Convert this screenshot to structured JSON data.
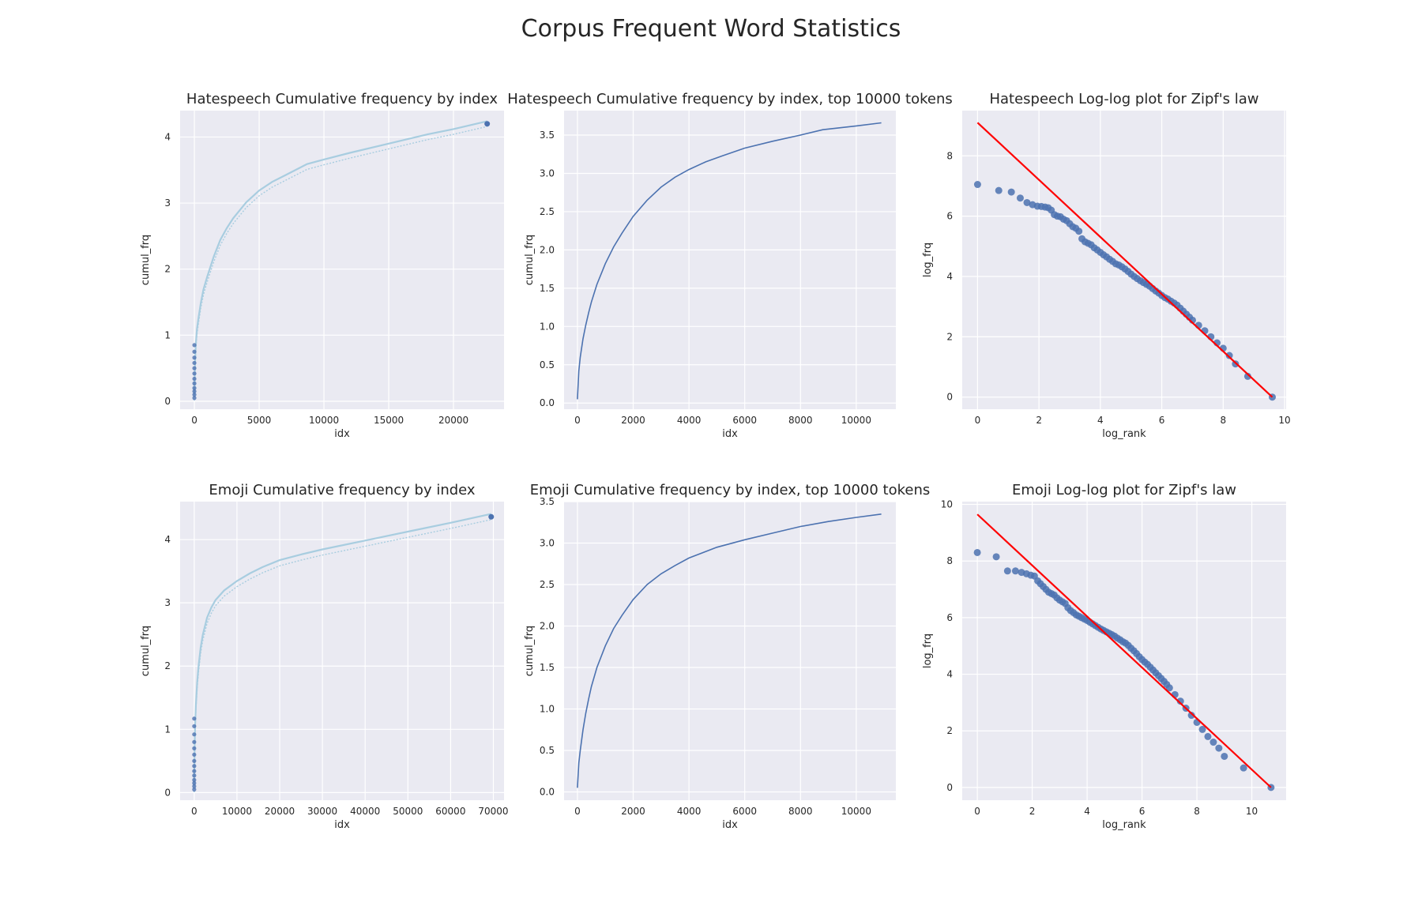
{
  "figure": {
    "title": "Corpus Frequent Word Statistics",
    "colors": {
      "background": "#ffffff",
      "panel": "#eaeaf2",
      "grid": "#ffffff",
      "series_line": "#4c72b0",
      "cumul_band": "#a8cde0",
      "cumul_point": "#4c72b0",
      "scatter_point": "#4c72b0",
      "fit_line": "#ff0000",
      "text": "#262626"
    }
  },
  "chart_data": [
    {
      "id": "hate-cumul-full",
      "type": "scatter",
      "title": "Hatespeech Cumulative frequency by index",
      "xlabel": "idx",
      "ylabel": "cumul_frq",
      "xlim": [
        -1100,
        23900
      ],
      "ylim": [
        -0.12,
        4.4
      ],
      "xticks": [
        0,
        5000,
        10000,
        15000,
        20000
      ],
      "xtick_labels": [
        "0",
        "5000",
        "10000",
        "15000",
        "20000"
      ],
      "yticks": [
        0,
        1,
        2,
        3,
        4
      ],
      "ytick_labels": [
        "0",
        "1",
        "2",
        "3",
        "4"
      ],
      "grid": true,
      "x": [
        0,
        50,
        100,
        200,
        300,
        500,
        700,
        1000,
        1500,
        2000,
        2500,
        3000,
        4000,
        5000,
        6000,
        7000,
        8700,
        10000,
        12000,
        15000,
        18000,
        20000,
        22600
      ],
      "y": [
        0.05,
        0.55,
        0.8,
        1.05,
        1.2,
        1.45,
        1.65,
        1.85,
        2.15,
        2.4,
        2.58,
        2.73,
        2.97,
        3.15,
        3.28,
        3.38,
        3.55,
        3.62,
        3.72,
        3.86,
        4.0,
        4.08,
        4.2
      ],
      "band_offset": 0.08,
      "start_points": [
        0.05,
        0.1,
        0.15,
        0.2,
        0.27,
        0.34,
        0.42,
        0.5,
        0.58,
        0.66,
        0.75,
        0.85
      ],
      "end_point": [
        22600,
        4.2
      ]
    },
    {
      "id": "hate-cumul-top",
      "type": "line",
      "title": "Hatespeech Cumulative frequency by index, top 10000 tokens",
      "xlabel": "idx",
      "ylabel": "cumul_frq",
      "xlim": [
        -480,
        11420
      ],
      "ylim": [
        -0.08,
        3.82
      ],
      "xticks": [
        0,
        2000,
        4000,
        6000,
        8000,
        10000
      ],
      "xtick_labels": [
        "0",
        "2000",
        "4000",
        "6000",
        "8000",
        "10000"
      ],
      "yticks": [
        0,
        0.5,
        1,
        1.5,
        2,
        2.5,
        3,
        3.5
      ],
      "ytick_labels": [
        "0.0",
        "0.5",
        "1.0",
        "1.5",
        "2.0",
        "2.5",
        "3.0",
        "3.5"
      ],
      "grid": true,
      "x": [
        0,
        50,
        100,
        200,
        300,
        400,
        500,
        700,
        1000,
        1300,
        1600,
        2000,
        2500,
        3000,
        3500,
        4000,
        4600,
        5200,
        6000,
        7000,
        8000,
        8800,
        10000,
        10900
      ],
      "y": [
        0.05,
        0.42,
        0.6,
        0.84,
        1.02,
        1.18,
        1.32,
        1.55,
        1.82,
        2.04,
        2.22,
        2.44,
        2.65,
        2.82,
        2.95,
        3.05,
        3.15,
        3.23,
        3.33,
        3.42,
        3.5,
        3.57,
        3.62,
        3.66
      ]
    },
    {
      "id": "hate-zipf",
      "type": "scatter",
      "title": "Hatespeech Log-log plot for Zipf's law",
      "xlabel": "log_rank",
      "ylabel": "log_frq",
      "xlim": [
        -0.5,
        10.05
      ],
      "ylim": [
        -0.4,
        9.5
      ],
      "xticks": [
        0,
        2,
        4,
        6,
        8,
        10
      ],
      "xtick_labels": [
        "0",
        "2",
        "4",
        "6",
        "8",
        "10"
      ],
      "yticks": [
        0,
        2,
        4,
        6,
        8
      ],
      "ytick_labels": [
        "0",
        "2",
        "4",
        "6",
        "8"
      ],
      "grid": true,
      "points": [
        [
          0,
          7.05
        ],
        [
          0.69,
          6.85
        ],
        [
          1.1,
          6.8
        ],
        [
          1.39,
          6.6
        ],
        [
          1.61,
          6.45
        ],
        [
          1.79,
          6.38
        ],
        [
          1.95,
          6.33
        ],
        [
          2.08,
          6.32
        ],
        [
          2.2,
          6.3
        ],
        [
          2.3,
          6.28
        ],
        [
          2.4,
          6.2
        ],
        [
          2.5,
          6.05
        ],
        [
          2.6,
          6.0
        ],
        [
          2.7,
          5.98
        ],
        [
          2.8,
          5.9
        ],
        [
          2.9,
          5.85
        ],
        [
          3.0,
          5.75
        ],
        [
          3.1,
          5.65
        ],
        [
          3.2,
          5.6
        ],
        [
          3.3,
          5.5
        ],
        [
          3.4,
          5.25
        ],
        [
          3.5,
          5.15
        ],
        [
          3.6,
          5.1
        ],
        [
          3.7,
          5.05
        ],
        [
          3.8,
          4.95
        ],
        [
          3.9,
          4.88
        ],
        [
          4.0,
          4.8
        ],
        [
          4.1,
          4.72
        ],
        [
          4.2,
          4.65
        ],
        [
          4.3,
          4.57
        ],
        [
          4.4,
          4.5
        ],
        [
          4.5,
          4.42
        ],
        [
          4.6,
          4.38
        ],
        [
          4.7,
          4.32
        ],
        [
          4.8,
          4.25
        ],
        [
          4.9,
          4.17
        ],
        [
          5.0,
          4.08
        ],
        [
          5.1,
          4.0
        ],
        [
          5.2,
          3.93
        ],
        [
          5.3,
          3.86
        ],
        [
          5.4,
          3.8
        ],
        [
          5.5,
          3.74
        ],
        [
          5.6,
          3.68
        ],
        [
          5.7,
          3.6
        ],
        [
          5.8,
          3.52
        ],
        [
          5.9,
          3.45
        ],
        [
          6.0,
          3.37
        ],
        [
          6.1,
          3.3
        ],
        [
          6.2,
          3.25
        ],
        [
          6.3,
          3.18
        ],
        [
          6.4,
          3.12
        ],
        [
          6.5,
          3.05
        ],
        [
          6.6,
          2.95
        ],
        [
          6.7,
          2.85
        ],
        [
          6.8,
          2.75
        ],
        [
          6.9,
          2.65
        ],
        [
          7.0,
          2.55
        ],
        [
          7.2,
          2.38
        ],
        [
          7.4,
          2.2
        ],
        [
          7.6,
          2.0
        ],
        [
          7.8,
          1.8
        ],
        [
          8.0,
          1.62
        ],
        [
          8.2,
          1.38
        ],
        [
          8.4,
          1.1
        ],
        [
          8.8,
          0.69
        ],
        [
          9.6,
          0.0
        ]
      ],
      "fit_line": [
        [
          0,
          9.1
        ],
        [
          9.6,
          0.0
        ]
      ]
    },
    {
      "id": "emoji-cumul-full",
      "type": "scatter",
      "title": "Emoji Cumulative frequency by index",
      "xlabel": "idx",
      "ylabel": "cumul_frq",
      "xlim": [
        -3300,
        72500
      ],
      "ylim": [
        -0.12,
        4.6
      ],
      "xticks": [
        0,
        10000,
        20000,
        30000,
        40000,
        50000,
        60000,
        70000
      ],
      "xtick_labels": [
        "0",
        "10000",
        "20000",
        "30000",
        "40000",
        "50000",
        "60000",
        "70000"
      ],
      "yticks": [
        0,
        1,
        2,
        3,
        4
      ],
      "ytick_labels": [
        "0",
        "1",
        "2",
        "3",
        "4"
      ],
      "grid": true,
      "x": [
        0,
        100,
        200,
        400,
        700,
        1000,
        1500,
        2000,
        3000,
        4000,
        5000,
        7000,
        10000,
        13000,
        16000,
        20000,
        25000,
        30000,
        40000,
        50000,
        60000,
        69500
      ],
      "y": [
        0.05,
        0.7,
        1.0,
        1.35,
        1.7,
        1.95,
        2.25,
        2.45,
        2.72,
        2.88,
        3.0,
        3.15,
        3.3,
        3.42,
        3.52,
        3.63,
        3.72,
        3.8,
        3.94,
        4.08,
        4.22,
        4.36
      ],
      "band_offset": 0.09,
      "start_points": [
        0.05,
        0.1,
        0.15,
        0.2,
        0.27,
        0.34,
        0.42,
        0.5,
        0.6,
        0.7,
        0.8,
        0.92,
        1.05,
        1.17
      ],
      "end_point": [
        69500,
        4.36
      ]
    },
    {
      "id": "emoji-cumul-top",
      "type": "line",
      "title": "Emoji Cumulative frequency by index, top 10000 tokens",
      "xlabel": "idx",
      "ylabel": "cumul_frq",
      "xlim": [
        -480,
        11420
      ],
      "ylim": [
        -0.1,
        3.5
      ],
      "xticks": [
        0,
        2000,
        4000,
        6000,
        8000,
        10000
      ],
      "xtick_labels": [
        "0",
        "2000",
        "4000",
        "6000",
        "8000",
        "10000"
      ],
      "yticks": [
        0,
        0.5,
        1,
        1.5,
        2,
        2.5,
        3,
        3.5
      ],
      "ytick_labels": [
        "0.0",
        "0.5",
        "1.0",
        "1.5",
        "2.0",
        "2.5",
        "3.0",
        "3.5"
      ],
      "grid": true,
      "x": [
        0,
        50,
        100,
        200,
        300,
        400,
        500,
        700,
        1000,
        1300,
        1600,
        2000,
        2500,
        3000,
        3500,
        4000,
        5000,
        6000,
        7000,
        8000,
        9000,
        10000,
        10900
      ],
      "y": [
        0.05,
        0.35,
        0.5,
        0.75,
        0.95,
        1.12,
        1.27,
        1.5,
        1.76,
        1.97,
        2.13,
        2.32,
        2.5,
        2.63,
        2.73,
        2.82,
        2.95,
        3.04,
        3.12,
        3.2,
        3.26,
        3.31,
        3.35
      ]
    },
    {
      "id": "emoji-zipf",
      "type": "scatter",
      "title": "Emoji Log-log plot for Zipf's law",
      "xlabel": "log_rank",
      "ylabel": "log_frq",
      "xlim": [
        -0.55,
        11.25
      ],
      "ylim": [
        -0.45,
        10.1
      ],
      "xticks": [
        0,
        2,
        4,
        6,
        8,
        10
      ],
      "xtick_labels": [
        "0",
        "2",
        "4",
        "6",
        "8",
        "10"
      ],
      "yticks": [
        0,
        2,
        4,
        6,
        8,
        10
      ],
      "ytick_labels": [
        "0",
        "2",
        "4",
        "6",
        "8",
        "10"
      ],
      "grid": true,
      "points": [
        [
          0,
          8.3
        ],
        [
          0.69,
          8.15
        ],
        [
          1.1,
          7.65
        ],
        [
          1.39,
          7.65
        ],
        [
          1.61,
          7.6
        ],
        [
          1.79,
          7.55
        ],
        [
          1.95,
          7.5
        ],
        [
          2.08,
          7.47
        ],
        [
          2.2,
          7.3
        ],
        [
          2.3,
          7.2
        ],
        [
          2.4,
          7.1
        ],
        [
          2.5,
          7.0
        ],
        [
          2.6,
          6.9
        ],
        [
          2.7,
          6.85
        ],
        [
          2.8,
          6.8
        ],
        [
          2.9,
          6.7
        ],
        [
          3.0,
          6.62
        ],
        [
          3.1,
          6.56
        ],
        [
          3.2,
          6.5
        ],
        [
          3.3,
          6.35
        ],
        [
          3.4,
          6.25
        ],
        [
          3.5,
          6.18
        ],
        [
          3.6,
          6.1
        ],
        [
          3.7,
          6.05
        ],
        [
          3.8,
          6.0
        ],
        [
          3.9,
          5.95
        ],
        [
          4.0,
          5.9
        ],
        [
          4.1,
          5.84
        ],
        [
          4.2,
          5.78
        ],
        [
          4.3,
          5.72
        ],
        [
          4.4,
          5.66
        ],
        [
          4.5,
          5.6
        ],
        [
          4.6,
          5.55
        ],
        [
          4.7,
          5.5
        ],
        [
          4.8,
          5.45
        ],
        [
          4.9,
          5.4
        ],
        [
          5.0,
          5.35
        ],
        [
          5.1,
          5.28
        ],
        [
          5.2,
          5.22
        ],
        [
          5.3,
          5.15
        ],
        [
          5.4,
          5.1
        ],
        [
          5.5,
          5.02
        ],
        [
          5.6,
          4.92
        ],
        [
          5.7,
          4.83
        ],
        [
          5.8,
          4.73
        ],
        [
          5.9,
          4.62
        ],
        [
          6.0,
          4.52
        ],
        [
          6.1,
          4.43
        ],
        [
          6.2,
          4.35
        ],
        [
          6.3,
          4.25
        ],
        [
          6.4,
          4.15
        ],
        [
          6.5,
          4.05
        ],
        [
          6.6,
          3.95
        ],
        [
          6.7,
          3.85
        ],
        [
          6.8,
          3.75
        ],
        [
          6.9,
          3.64
        ],
        [
          7.0,
          3.52
        ],
        [
          7.2,
          3.28
        ],
        [
          7.4,
          3.05
        ],
        [
          7.6,
          2.8
        ],
        [
          7.8,
          2.55
        ],
        [
          8.0,
          2.3
        ],
        [
          8.2,
          2.05
        ],
        [
          8.4,
          1.8
        ],
        [
          8.6,
          1.6
        ],
        [
          8.8,
          1.39
        ],
        [
          9.0,
          1.1
        ],
        [
          9.7,
          0.69
        ],
        [
          10.7,
          0.0
        ]
      ],
      "fit_line": [
        [
          0,
          9.65
        ],
        [
          10.7,
          0.0
        ]
      ]
    }
  ]
}
